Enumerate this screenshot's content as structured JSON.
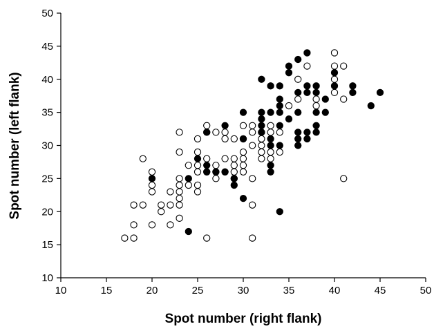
{
  "chart_data": {
    "type": "scatter",
    "title": "",
    "xlabel": "Spot number (right flank)",
    "ylabel": "Spot number (left flank)",
    "xlim": [
      10,
      50
    ],
    "ylim": [
      10,
      50
    ],
    "xticks": [
      10,
      15,
      20,
      25,
      30,
      35,
      40,
      45,
      50
    ],
    "yticks": [
      10,
      15,
      20,
      25,
      30,
      35,
      40,
      45,
      50
    ],
    "grid": false,
    "legend": "none",
    "colors": {
      "axis": "#000000",
      "marker_edge": "#000000",
      "open_fill": "#ffffff",
      "filled_fill": "#000000"
    },
    "series": [
      {
        "marker": "open-circle",
        "points": [
          [
            17,
            16
          ],
          [
            18,
            16
          ],
          [
            18,
            18
          ],
          [
            18,
            21
          ],
          [
            19,
            21
          ],
          [
            19,
            28
          ],
          [
            20,
            18
          ],
          [
            20,
            23
          ],
          [
            20,
            24
          ],
          [
            20,
            26
          ],
          [
            21,
            20
          ],
          [
            21,
            21
          ],
          [
            22,
            18
          ],
          [
            22,
            21
          ],
          [
            22,
            23
          ],
          [
            23,
            19
          ],
          [
            23,
            21
          ],
          [
            23,
            22
          ],
          [
            23,
            23
          ],
          [
            23,
            24
          ],
          [
            23,
            25
          ],
          [
            23,
            29
          ],
          [
            23,
            32
          ],
          [
            24,
            24
          ],
          [
            24,
            27
          ],
          [
            25,
            23
          ],
          [
            25,
            24
          ],
          [
            25,
            26
          ],
          [
            25,
            27
          ],
          [
            25,
            29
          ],
          [
            25,
            31
          ],
          [
            26,
            16
          ],
          [
            26,
            26
          ],
          [
            26,
            28
          ],
          [
            26,
            32
          ],
          [
            26,
            33
          ],
          [
            27,
            25
          ],
          [
            27,
            26
          ],
          [
            27,
            27
          ],
          [
            27,
            32
          ],
          [
            28,
            26
          ],
          [
            28,
            28
          ],
          [
            28,
            31
          ],
          [
            28,
            32
          ],
          [
            29,
            25
          ],
          [
            29,
            26
          ],
          [
            29,
            27
          ],
          [
            29,
            28
          ],
          [
            29,
            31
          ],
          [
            30,
            26
          ],
          [
            30,
            27
          ],
          [
            30,
            28
          ],
          [
            30,
            29
          ],
          [
            30,
            31
          ],
          [
            30,
            33
          ],
          [
            31,
            16
          ],
          [
            31,
            21
          ],
          [
            31,
            25
          ],
          [
            31,
            30
          ],
          [
            31,
            32
          ],
          [
            31,
            33
          ],
          [
            32,
            28
          ],
          [
            32,
            29
          ],
          [
            32,
            30
          ],
          [
            32,
            31
          ],
          [
            32,
            32
          ],
          [
            33,
            28
          ],
          [
            33,
            29
          ],
          [
            33,
            32
          ],
          [
            33,
            33
          ],
          [
            34,
            29
          ],
          [
            34,
            32
          ],
          [
            35,
            36
          ],
          [
            36,
            37
          ],
          [
            36,
            40
          ],
          [
            37,
            42
          ],
          [
            38,
            36
          ],
          [
            38,
            37
          ],
          [
            40,
            38
          ],
          [
            40,
            40
          ],
          [
            40,
            42
          ],
          [
            40,
            44
          ],
          [
            41,
            25
          ],
          [
            41,
            37
          ],
          [
            41,
            42
          ]
        ]
      },
      {
        "marker": "filled-circle",
        "points": [
          [
            20,
            25
          ],
          [
            24,
            17
          ],
          [
            24,
            25
          ],
          [
            25,
            28
          ],
          [
            26,
            26
          ],
          [
            26,
            27
          ],
          [
            26,
            32
          ],
          [
            27,
            26
          ],
          [
            28,
            26
          ],
          [
            28,
            33
          ],
          [
            29,
            24
          ],
          [
            29,
            25
          ],
          [
            30,
            22
          ],
          [
            30,
            31
          ],
          [
            30,
            35
          ],
          [
            32,
            32
          ],
          [
            32,
            33
          ],
          [
            32,
            34
          ],
          [
            32,
            35
          ],
          [
            32,
            40
          ],
          [
            33,
            26
          ],
          [
            33,
            27
          ],
          [
            33,
            30
          ],
          [
            33,
            31
          ],
          [
            33,
            35
          ],
          [
            33,
            39
          ],
          [
            34,
            20
          ],
          [
            34,
            30
          ],
          [
            34,
            33
          ],
          [
            34,
            35
          ],
          [
            34,
            36
          ],
          [
            34,
            37
          ],
          [
            34,
            39
          ],
          [
            35,
            34
          ],
          [
            35,
            41
          ],
          [
            35,
            42
          ],
          [
            36,
            30
          ],
          [
            36,
            31
          ],
          [
            36,
            32
          ],
          [
            36,
            35
          ],
          [
            36,
            38
          ],
          [
            36,
            43
          ],
          [
            37,
            31
          ],
          [
            37,
            32
          ],
          [
            37,
            38
          ],
          [
            37,
            39
          ],
          [
            37,
            44
          ],
          [
            38,
            32
          ],
          [
            38,
            33
          ],
          [
            38,
            35
          ],
          [
            38,
            38
          ],
          [
            38,
            39
          ],
          [
            39,
            35
          ],
          [
            39,
            37
          ],
          [
            40,
            39
          ],
          [
            40,
            41
          ],
          [
            42,
            38
          ],
          [
            42,
            39
          ],
          [
            44,
            36
          ],
          [
            45,
            38
          ]
        ]
      }
    ]
  }
}
